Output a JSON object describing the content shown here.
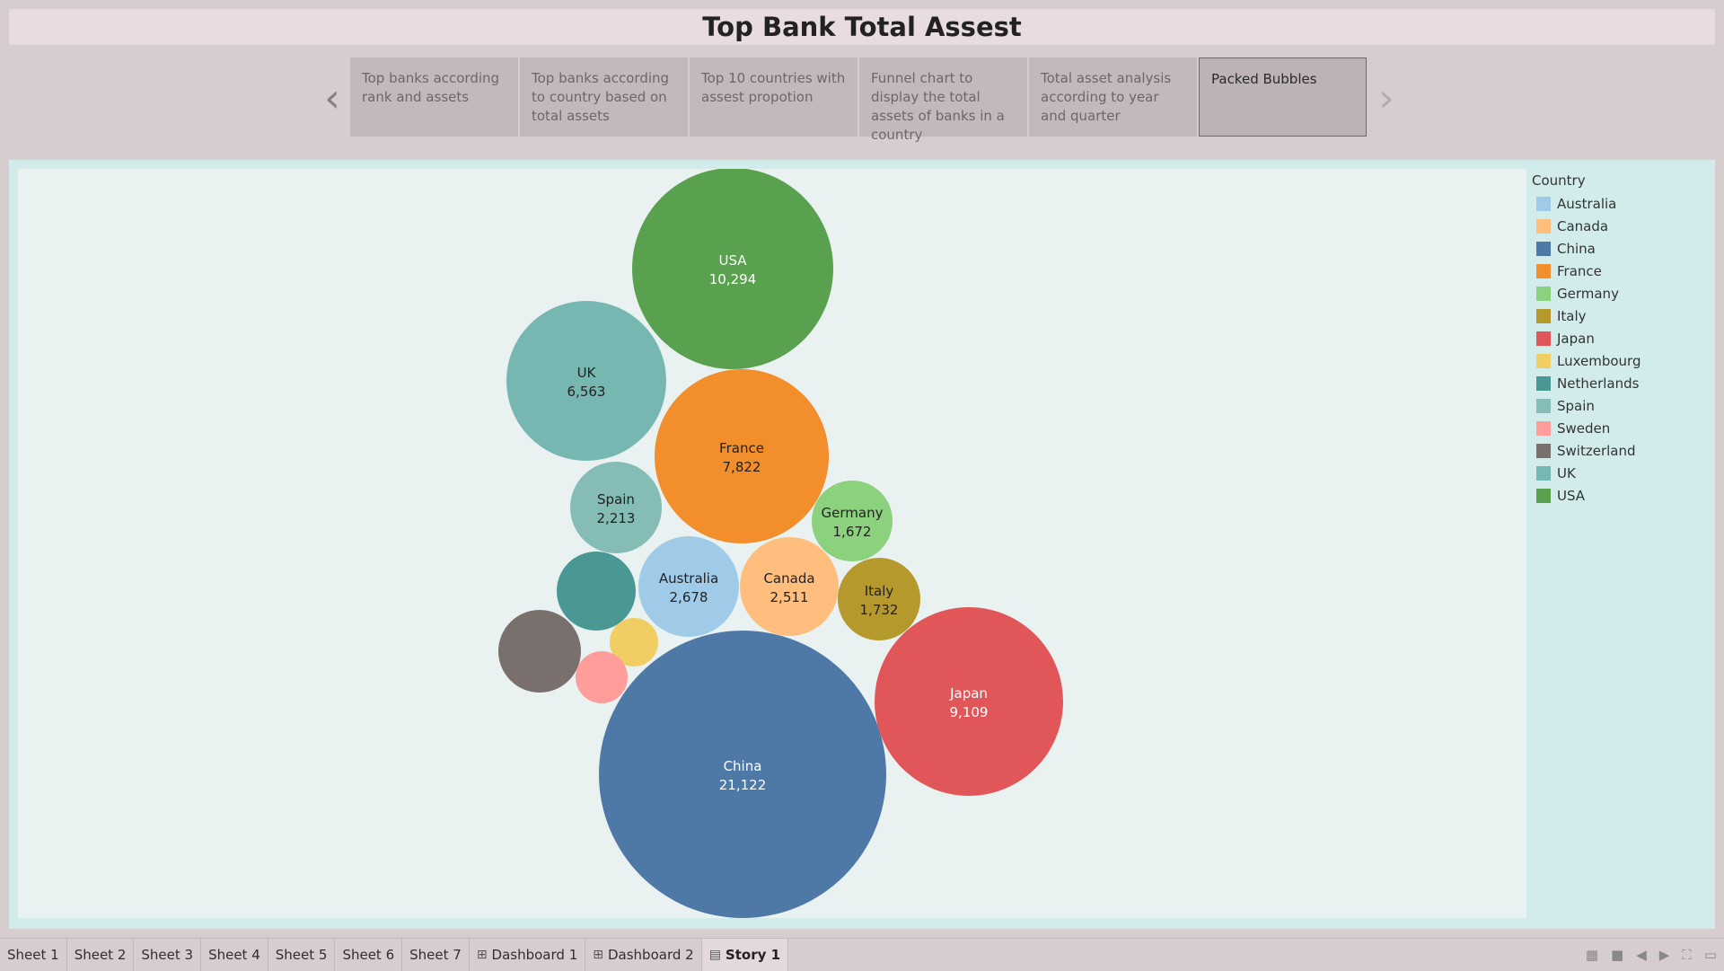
{
  "title": "Top Bank Total Assest",
  "story": {
    "points": [
      "Top banks according rank and assets",
      "Top banks according to country based on total assets",
      "Top 10 countries with assest propotion",
      "Funnel chart to display the total assets of banks in a country",
      "Total asset analysis according to year and quarter",
      "Packed Bubbles"
    ],
    "active_index": 5,
    "prev_icon": "chevron-left-icon",
    "next_icon": "chevron-right-icon"
  },
  "legend": {
    "title": "Country",
    "items": [
      {
        "label": "Australia",
        "color": "#a0cbe8"
      },
      {
        "label": "Canada",
        "color": "#ffbe7d"
      },
      {
        "label": "China",
        "color": "#4e79a7"
      },
      {
        "label": "France",
        "color": "#f28e2b"
      },
      {
        "label": "Germany",
        "color": "#8cd17d"
      },
      {
        "label": "Italy",
        "color": "#b6992d"
      },
      {
        "label": "Japan",
        "color": "#e15759"
      },
      {
        "label": "Luxembourg",
        "color": "#f1ce63"
      },
      {
        "label": "Netherlands",
        "color": "#499894"
      },
      {
        "label": "Spain",
        "color": "#86bcb6"
      },
      {
        "label": "Sweden",
        "color": "#ff9d9a"
      },
      {
        "label": "Switzerland",
        "color": "#79706e"
      },
      {
        "label": "UK",
        "color": "#76b7b2"
      },
      {
        "label": "USA",
        "color": "#59a14f"
      }
    ]
  },
  "chart_data": {
    "type": "packed-bubbles",
    "measure": "Total Assets",
    "bubbles": [
      {
        "country": "USA",
        "value": 10294,
        "label": "10,294",
        "color": "#59a14f",
        "text_color": "#ffffff"
      },
      {
        "country": "UK",
        "value": 6563,
        "label": "6,563",
        "color": "#76b7b2",
        "text_color": "#222222"
      },
      {
        "country": "France",
        "value": 7822,
        "label": "7,822",
        "color": "#f28e2b",
        "text_color": "#222222"
      },
      {
        "country": "Spain",
        "value": 2213,
        "label": "2,213",
        "color": "#86bcb6",
        "text_color": "#222222"
      },
      {
        "country": "Germany",
        "value": 1672,
        "label": "1,672",
        "color": "#8cd17d",
        "text_color": "#222222"
      },
      {
        "country": "Australia",
        "value": 2678,
        "label": "2,678",
        "color": "#a0cbe8",
        "text_color": "#222222"
      },
      {
        "country": "Canada",
        "value": 2511,
        "label": "2,511",
        "color": "#ffbe7d",
        "text_color": "#222222"
      },
      {
        "country": "Italy",
        "value": 1732,
        "label": "1,732",
        "color": "#b6992d",
        "text_color": "#222222"
      },
      {
        "country": "Netherlands",
        "value": 1360,
        "label": "",
        "color": "#499894",
        "text_color": "#ffffff"
      },
      {
        "country": "Switzerland",
        "value": 1430,
        "label": "",
        "color": "#79706e",
        "text_color": "#ffffff"
      },
      {
        "country": "Luxembourg",
        "value": 520,
        "label": "",
        "color": "#f1ce63",
        "text_color": "#222222"
      },
      {
        "country": "Sweden",
        "value": 560,
        "label": "",
        "color": "#ff9d9a",
        "text_color": "#222222"
      },
      {
        "country": "China",
        "value": 21122,
        "label": "21,122",
        "color": "#4e79a7",
        "text_color": "#ffffff"
      },
      {
        "country": "Japan",
        "value": 9109,
        "label": "9,109",
        "color": "#e15759",
        "text_color": "#ffffff"
      }
    ]
  },
  "bottom_tabs": [
    {
      "label": "Sheet 1",
      "icon": ""
    },
    {
      "label": "Sheet 2",
      "icon": ""
    },
    {
      "label": "Sheet 3",
      "icon": ""
    },
    {
      "label": "Sheet 4",
      "icon": ""
    },
    {
      "label": "Sheet 5",
      "icon": ""
    },
    {
      "label": "Sheet 6",
      "icon": ""
    },
    {
      "label": "Sheet 7",
      "icon": ""
    },
    {
      "label": "Dashboard 1",
      "icon": "dashboard-icon"
    },
    {
      "label": "Dashboard 2",
      "icon": "dashboard-icon"
    },
    {
      "label": "Story 1",
      "icon": "story-icon",
      "active": true
    }
  ],
  "bottom_controls": [
    "show-sheet-sorter-icon",
    "show-filmstrip-icon",
    "previous-sheet-icon",
    "next-sheet-icon",
    "fit-screen-icon",
    "presentation-mode-icon"
  ]
}
